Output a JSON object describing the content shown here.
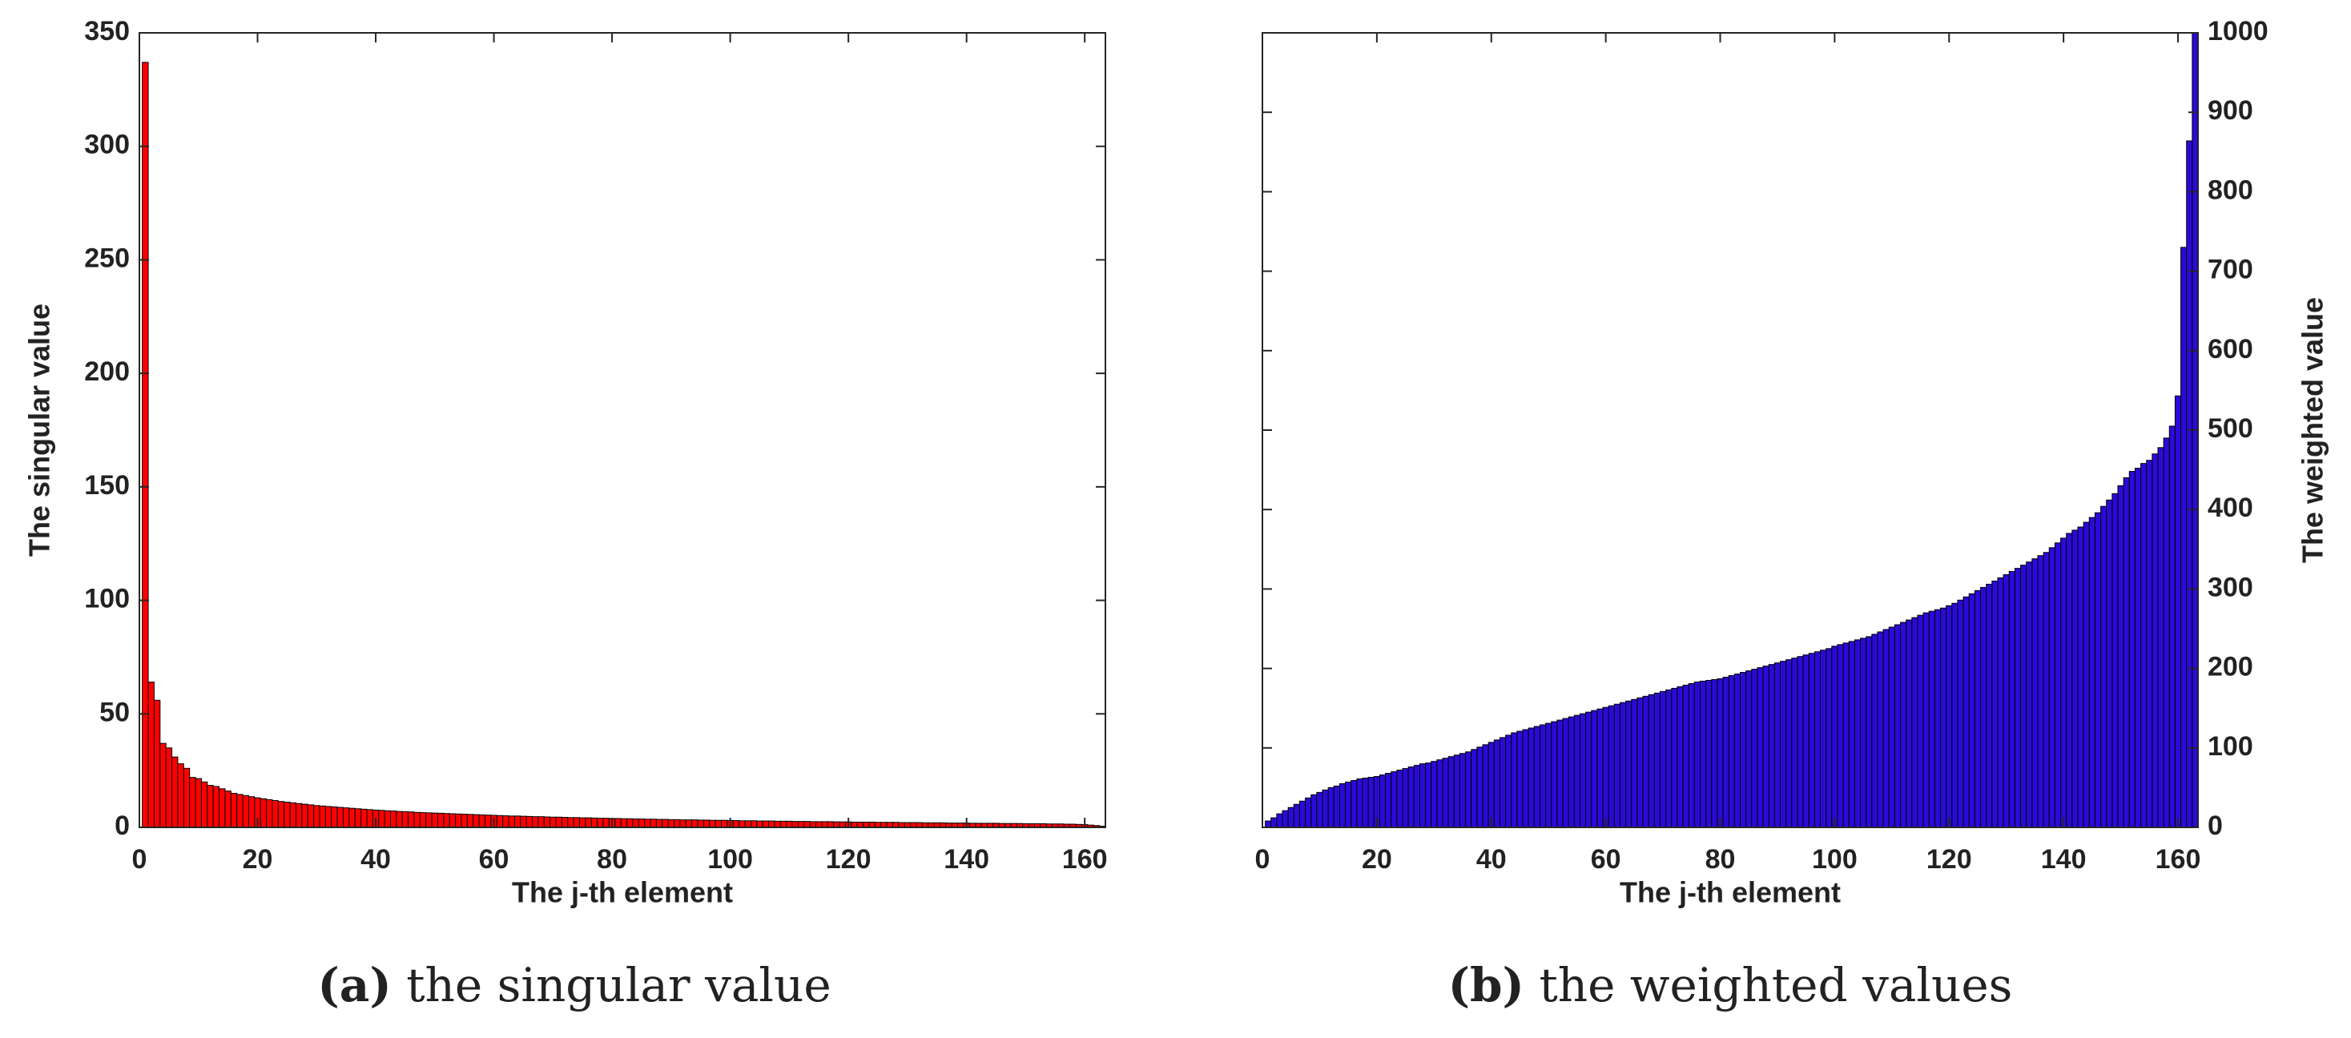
{
  "chart_data": [
    {
      "type": "bar",
      "caption_label": "(a)",
      "caption": "the singular value",
      "xlabel": "The j-th element",
      "ylabel": "The singular value",
      "color": "#ff0000",
      "edgecolor": "#000000",
      "y_axis_side": "left",
      "xlim": [
        0,
        163.5
      ],
      "xticks": [
        0,
        20,
        40,
        60,
        80,
        100,
        120,
        140,
        160
      ],
      "ylim": [
        0,
        350
      ],
      "yticks": [
        0,
        50,
        100,
        150,
        200,
        250,
        300,
        350
      ],
      "x": [
        1,
        2,
        3,
        4,
        5,
        6,
        7,
        8,
        9,
        10,
        11,
        12,
        13,
        14,
        15,
        16,
        17,
        18,
        19,
        20,
        21,
        22,
        23,
        24,
        25,
        26,
        27,
        28,
        29,
        30,
        31,
        32,
        33,
        34,
        35,
        36,
        37,
        38,
        39,
        40,
        41,
        42,
        43,
        44,
        45,
        46,
        47,
        48,
        49,
        50,
        51,
        52,
        53,
        54,
        55,
        56,
        57,
        58,
        59,
        60,
        61,
        62,
        63,
        64,
        65,
        66,
        67,
        68,
        69,
        70,
        71,
        72,
        73,
        74,
        75,
        76,
        77,
        78,
        79,
        80,
        81,
        82,
        83,
        84,
        85,
        86,
        87,
        88,
        89,
        90,
        91,
        92,
        93,
        94,
        95,
        96,
        97,
        98,
        99,
        100,
        101,
        102,
        103,
        104,
        105,
        106,
        107,
        108,
        109,
        110,
        111,
        112,
        113,
        114,
        115,
        116,
        117,
        118,
        119,
        120,
        121,
        122,
        123,
        124,
        125,
        126,
        127,
        128,
        129,
        130,
        131,
        132,
        133,
        134,
        135,
        136,
        137,
        138,
        139,
        140,
        141,
        142,
        143,
        144,
        145,
        146,
        147,
        148,
        149,
        150,
        151,
        152,
        153,
        154,
        155,
        156,
        157,
        158,
        159,
        160,
        161,
        162,
        163
      ],
      "values": [
        337,
        64,
        56,
        37,
        35,
        31,
        28,
        26,
        22,
        21.5,
        20,
        18.5,
        18,
        17,
        16,
        15,
        14.5,
        14,
        13.5,
        13,
        12.6,
        12.2,
        11.8,
        11.4,
        11.1,
        10.8,
        10.5,
        10.2,
        9.9,
        9.6,
        9.4,
        9.2,
        9.0,
        8.8,
        8.6,
        8.4,
        8.2,
        8.0,
        7.8,
        7.6,
        7.5,
        7.3,
        7.2,
        7.0,
        6.9,
        6.8,
        6.6,
        6.5,
        6.4,
        6.3,
        6.2,
        6.1,
        6.0,
        5.9,
        5.8,
        5.7,
        5.6,
        5.5,
        5.4,
        5.3,
        5.2,
        5.1,
        5.0,
        5.0,
        4.9,
        4.8,
        4.7,
        4.7,
        4.6,
        4.5,
        4.5,
        4.4,
        4.3,
        4.3,
        4.2,
        4.2,
        4.1,
        4.0,
        4.0,
        3.9,
        3.9,
        3.8,
        3.8,
        3.7,
        3.7,
        3.6,
        3.6,
        3.5,
        3.5,
        3.4,
        3.4,
        3.3,
        3.3,
        3.3,
        3.2,
        3.2,
        3.1,
        3.1,
        3.1,
        3.0,
        3.0,
        2.9,
        2.9,
        2.9,
        2.8,
        2.8,
        2.8,
        2.7,
        2.7,
        2.7,
        2.6,
        2.6,
        2.6,
        2.5,
        2.5,
        2.5,
        2.5,
        2.4,
        2.4,
        2.4,
        2.3,
        2.3,
        2.3,
        2.3,
        2.2,
        2.2,
        2.2,
        2.2,
        2.1,
        2.1,
        2.1,
        2.1,
        2.0,
        2.0,
        2.0,
        2.0,
        1.9,
        1.9,
        1.9,
        1.9,
        1.8,
        1.8,
        1.8,
        1.8,
        1.8,
        1.7,
        1.7,
        1.7,
        1.7,
        1.6,
        1.6,
        1.6,
        1.6,
        1.5,
        1.5,
        1.5,
        1.4,
        1.4,
        1.3,
        1.2,
        1.0,
        0.8,
        0.5
      ]
    },
    {
      "type": "bar",
      "caption_label": "(b)",
      "caption": "the weighted values",
      "xlabel": "The j-th element",
      "ylabel": "The weighted value",
      "color": "#2a0ad8",
      "edgecolor": "#000000",
      "y_axis_side": "right",
      "xlim": [
        0,
        163.5
      ],
      "xticks": [
        0,
        20,
        40,
        60,
        80,
        100,
        120,
        140,
        160
      ],
      "ylim": [
        0,
        1000
      ],
      "yticks": [
        0,
        100,
        200,
        300,
        400,
        500,
        600,
        700,
        800,
        900,
        1000
      ],
      "x": [
        1,
        2,
        3,
        4,
        5,
        6,
        7,
        8,
        9,
        10,
        11,
        12,
        13,
        14,
        15,
        16,
        17,
        18,
        19,
        20,
        21,
        22,
        23,
        24,
        25,
        26,
        27,
        28,
        29,
        30,
        31,
        32,
        33,
        34,
        35,
        36,
        37,
        38,
        39,
        40,
        41,
        42,
        43,
        44,
        45,
        46,
        47,
        48,
        49,
        50,
        51,
        52,
        53,
        54,
        55,
        56,
        57,
        58,
        59,
        60,
        61,
        62,
        63,
        64,
        65,
        66,
        67,
        68,
        69,
        70,
        71,
        72,
        73,
        74,
        75,
        76,
        77,
        78,
        79,
        80,
        81,
        82,
        83,
        84,
        85,
        86,
        87,
        88,
        89,
        90,
        91,
        92,
        93,
        94,
        95,
        96,
        97,
        98,
        99,
        100,
        101,
        102,
        103,
        104,
        105,
        106,
        107,
        108,
        109,
        110,
        111,
        112,
        113,
        114,
        115,
        116,
        117,
        118,
        119,
        120,
        121,
        122,
        123,
        124,
        125,
        126,
        127,
        128,
        129,
        130,
        131,
        132,
        133,
        134,
        135,
        136,
        137,
        138,
        139,
        140,
        141,
        142,
        143,
        144,
        145,
        146,
        147,
        148,
        149,
        150,
        151,
        152,
        153,
        154,
        155,
        156,
        157,
        158,
        159,
        160,
        161,
        162,
        163
      ],
      "values": [
        8,
        12,
        17,
        21,
        25,
        29,
        33,
        37,
        41,
        44,
        47,
        50,
        52,
        55,
        57,
        59,
        61,
        62,
        63,
        64,
        66,
        68,
        70,
        72,
        74,
        76,
        78,
        80,
        81,
        83,
        85,
        87,
        89,
        91,
        93,
        95,
        98,
        101,
        104,
        107,
        110,
        113,
        116,
        119,
        121,
        123,
        125,
        127,
        129,
        131,
        133,
        135,
        137,
        139,
        141,
        143,
        145,
        147,
        149,
        151,
        153,
        155,
        157,
        159,
        161,
        163,
        165,
        167,
        169,
        171,
        173,
        175,
        177,
        179,
        181,
        183,
        184,
        185,
        186,
        187,
        189,
        191,
        193,
        195,
        197,
        199,
        201,
        203,
        205,
        207,
        209,
        211,
        213,
        215,
        217,
        219,
        221,
        223,
        225,
        228,
        230,
        232,
        234,
        236,
        238,
        240,
        243,
        246,
        249,
        252,
        255,
        258,
        261,
        264,
        267,
        270,
        272,
        274,
        276,
        279,
        282,
        286,
        290,
        294,
        298,
        302,
        306,
        310,
        314,
        318,
        322,
        326,
        330,
        334,
        338,
        342,
        346,
        352,
        358,
        364,
        370,
        374,
        378,
        384,
        390,
        396,
        404,
        412,
        420,
        430,
        440,
        448,
        452,
        458,
        462,
        470,
        478,
        490,
        505,
        543,
        730,
        864,
        1000
      ]
    }
  ]
}
